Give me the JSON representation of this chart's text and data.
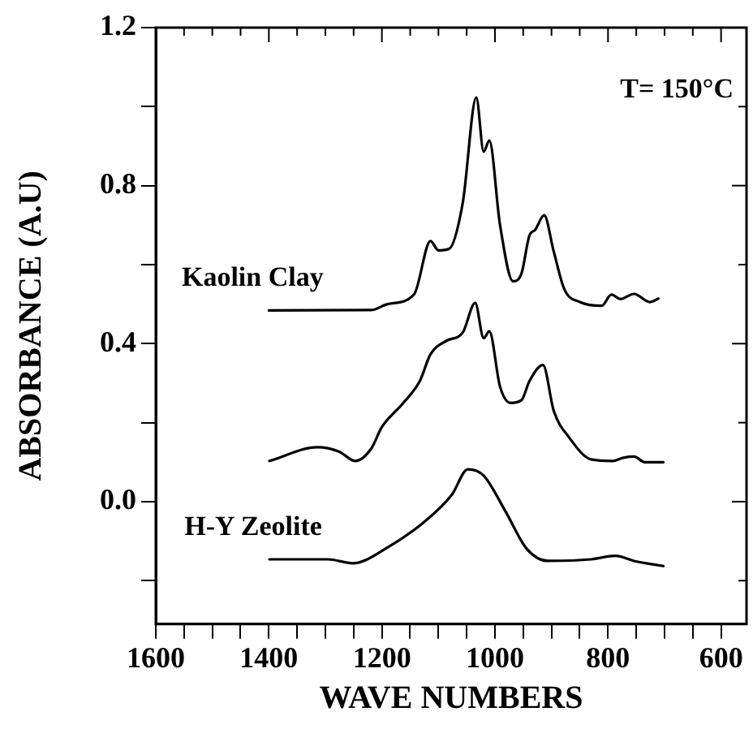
{
  "chart_data": {
    "type": "line",
    "xlabel": "WAVE NUMBERS",
    "ylabel": "ABSORBANCE (A.U)",
    "annotations": [
      "T= 150°C"
    ],
    "xlim": [
      1600,
      555
    ],
    "xticks": [
      1600,
      {
        "value": 1550,
        "label": null
      },
      {
        "value": 1500,
        "label": null
      },
      {
        "value": 1450,
        "label": null
      },
      1400,
      {
        "value": 1350,
        "label": null
      },
      {
        "value": 1300,
        "label": null
      },
      {
        "value": 1250,
        "label": null
      },
      1200,
      {
        "value": 1150,
        "label": null
      },
      {
        "value": 1100,
        "label": null
      },
      {
        "value": 1050,
        "label": null
      },
      1000,
      {
        "value": 950,
        "label": null
      },
      {
        "value": 900,
        "label": null
      },
      {
        "value": 850,
        "label": null
      },
      800,
      {
        "value": 750,
        "label": null
      },
      {
        "value": 700,
        "label": null
      },
      {
        "value": 650,
        "label": null
      },
      600
    ],
    "ylim": [
      -0.31,
      1.2
    ],
    "yticks": [
      {
        "value": -0.2,
        "label": null
      },
      {
        "value": 0,
        "label": "0.0"
      },
      {
        "value": 0.2,
        "label": null
      },
      0.4,
      {
        "value": 0.6,
        "label": null
      },
      0.8,
      {
        "value": 1,
        "label": null
      },
      1.2
    ],
    "grid": false,
    "legend": false,
    "marker": "none",
    "line_style": "solid",
    "series": [
      {
        "name": "Kaolin Clay",
        "color": "#000000",
        "x": [
          1400,
          1219,
          1190,
          1143,
          1114,
          1100,
          1081,
          1057,
          1033,
          1020,
          1010,
          991,
          968,
          953,
          939,
          929,
          913,
          896,
          877,
          849,
          811,
          794,
          778,
          754,
          726,
          711
        ],
        "values": [
          0.484,
          0.485,
          0.5,
          0.525,
          0.66,
          0.636,
          0.64,
          0.756,
          1.023,
          0.886,
          0.914,
          0.7,
          0.558,
          0.578,
          0.674,
          0.688,
          0.725,
          0.633,
          0.537,
          0.505,
          0.496,
          0.524,
          0.513,
          0.526,
          0.505,
          0.514
        ]
      },
      {
        "color": "#000000",
        "x": [
          1399,
          1314,
          1276,
          1247,
          1219,
          1200,
          1162,
          1133,
          1114,
          1086,
          1057,
          1035,
          1020,
          1010,
          991,
          972,
          953,
          939,
          915,
          896,
          868,
          830,
          792,
          773,
          754,
          735,
          702
        ],
        "values": [
          0.103,
          0.138,
          0.127,
          0.103,
          0.134,
          0.189,
          0.25,
          0.305,
          0.373,
          0.407,
          0.428,
          0.503,
          0.414,
          0.431,
          0.291,
          0.25,
          0.257,
          0.305,
          0.346,
          0.23,
          0.161,
          0.107,
          0.103,
          0.111,
          0.114,
          0.1,
          0.1
        ]
      },
      {
        "name": "H-Y Zeolite",
        "color": "#000000",
        "x": [
          1399,
          1295,
          1252,
          1190,
          1124,
          1076,
          1048,
          1020,
          982,
          944,
          906,
          830,
          787,
          754,
          702
        ],
        "values": [
          -0.146,
          -0.146,
          -0.156,
          -0.116,
          -0.05,
          0.018,
          0.082,
          0.066,
          -0.023,
          -0.119,
          -0.15,
          -0.146,
          -0.137,
          -0.15,
          -0.163
        ]
      }
    ]
  }
}
